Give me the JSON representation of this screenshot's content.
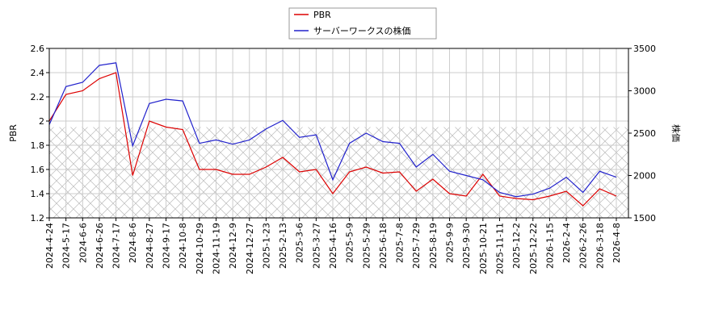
{
  "chart_data": {
    "type": "line",
    "x": [
      "2024-4-24",
      "2024-5-17",
      "2024-6-6",
      "2024-6-26",
      "2024-7-17",
      "2024-8-6",
      "2024-8-27",
      "2024-9-17",
      "2024-10-8",
      "2024-10-29",
      "2024-11-19",
      "2024-12-9",
      "2024-12-27",
      "2025-1-23",
      "2025-2-13",
      "2025-3-6",
      "2025-3-27",
      "2025-4-16",
      "2025-5-9",
      "2025-5-29",
      "2025-6-18",
      "2025-7-8",
      "2025-7-29",
      "2025-8-19",
      "2025-9-9",
      "2025-9-30",
      "2025-10-21",
      "2025-11-11",
      "2025-12-2",
      "2025-12-22",
      "2026-1-15",
      "2026-2-4",
      "2026-2-26",
      "2026-3-18",
      "2026-4-8"
    ],
    "series": [
      {
        "name": "PBR",
        "color": "#dd0000",
        "axis": "y",
        "values": [
          2.0,
          2.22,
          2.25,
          2.35,
          2.4,
          1.55,
          2.0,
          1.95,
          1.93,
          1.6,
          1.6,
          1.56,
          1.56,
          1.62,
          1.7,
          1.58,
          1.6,
          1.4,
          1.58,
          1.62,
          1.57,
          1.58,
          1.42,
          1.52,
          1.4,
          1.38,
          1.56,
          1.38,
          1.36,
          1.35,
          1.38,
          1.42,
          1.3,
          1.44,
          1.38
        ]
      },
      {
        "name": "サーバーワークスの株価",
        "color": "#2222cc",
        "axis": "y2",
        "values": [
          2600,
          3050,
          3100,
          3300,
          3330,
          2350,
          2850,
          2900,
          2880,
          2380,
          2420,
          2370,
          2420,
          2550,
          2650,
          2450,
          2480,
          1950,
          2380,
          2500,
          2400,
          2380,
          2100,
          2250,
          2050,
          2000,
          1950,
          1800,
          1750,
          1780,
          1850,
          1980,
          1800,
          2050,
          1980
        ]
      }
    ],
    "ylabel": "PBR",
    "y2label": "株価",
    "ylim": [
      1.2,
      2.6
    ],
    "yticks": [
      1.2,
      1.4,
      1.6,
      1.8,
      2.0,
      2.2,
      2.4,
      2.6
    ],
    "y2lim": [
      1500,
      3500
    ],
    "y2ticks": [
      1500,
      2000,
      2500,
      3000,
      3500
    ],
    "shaded_range": [
      1.2,
      1.95
    ],
    "grid": true
  }
}
